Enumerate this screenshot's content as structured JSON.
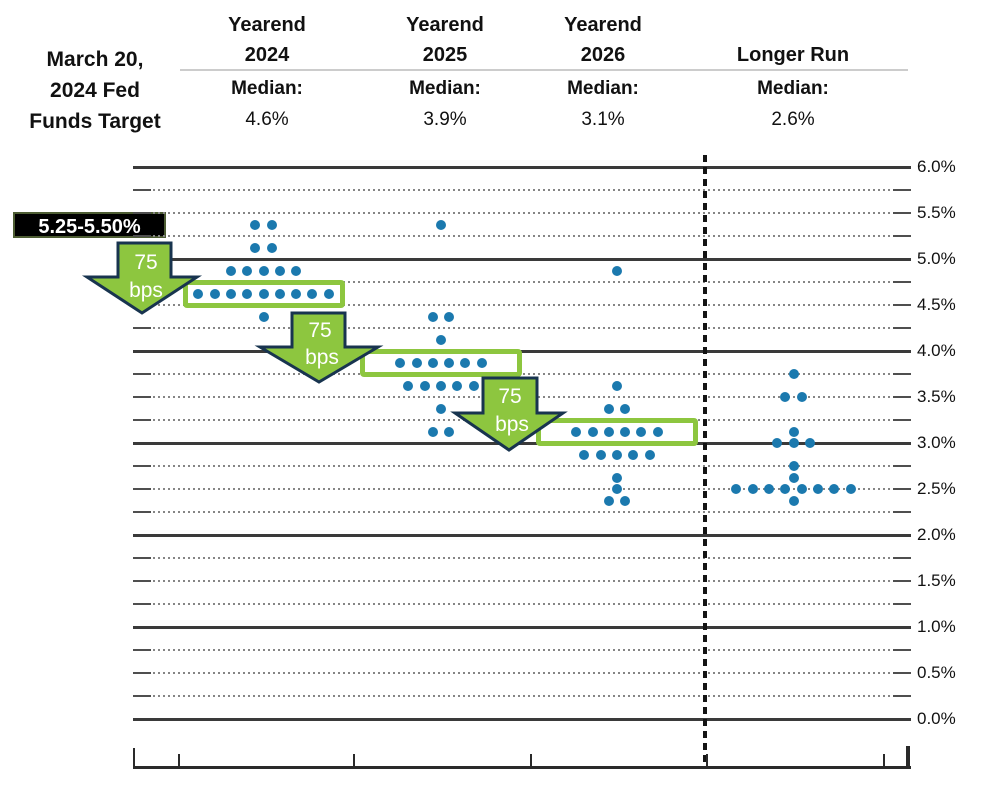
{
  "title": {
    "lines": [
      "March 20,",
      "2024 Fed",
      "Funds Target"
    ]
  },
  "target_label": "5.25-5.50%",
  "columns": [
    {
      "header": [
        "Yearend",
        "2024"
      ],
      "median_label": "Median:",
      "median_value": "4.6%"
    },
    {
      "header": [
        "Yearend",
        "2025"
      ],
      "median_label": "Median:",
      "median_value": "3.9%"
    },
    {
      "header": [
        "Yearend",
        "2026"
      ],
      "median_label": "Median:",
      "median_value": "3.1%"
    },
    {
      "header": [
        "Longer Run"
      ],
      "median_label": "Median:",
      "median_value": "2.6%"
    }
  ],
  "chart_data": {
    "type": "scatter",
    "title": "March 20, 2024 Fed Funds Target dot plot",
    "ylabel": "",
    "xlabel": "",
    "ylim": [
      0.0,
      6.0
    ],
    "gridline_step": 0.25,
    "solid_gridlines_at_integers": true,
    "grid": "on",
    "y_tick_labels": [
      "6.0%",
      "5.5%",
      "5.0%",
      "4.5%",
      "4.0%",
      "3.5%",
      "3.0%",
      "2.5%",
      "2.0%",
      "1.5%",
      "1.0%",
      "0.5%",
      "0.0%"
    ],
    "categories": [
      "Yearend 2024",
      "Yearend 2025",
      "Yearend 2026",
      "Longer Run"
    ],
    "series": [
      {
        "name": "Yearend 2024",
        "median_pct": 4.6,
        "dots": [
          [
            5.375,
            2
          ],
          [
            5.125,
            2
          ],
          [
            4.875,
            5
          ],
          [
            4.625,
            9
          ],
          [
            4.375,
            1
          ]
        ]
      },
      {
        "name": "Yearend 2025",
        "median_pct": 3.9,
        "dots": [
          [
            5.375,
            1
          ],
          [
            4.375,
            2
          ],
          [
            4.125,
            1
          ],
          [
            3.875,
            6
          ],
          [
            3.625,
            5
          ],
          [
            3.375,
            1
          ],
          [
            3.125,
            2
          ]
        ]
      },
      {
        "name": "Yearend 2026",
        "median_pct": 3.1,
        "dots": [
          [
            4.875,
            1
          ],
          [
            3.625,
            1
          ],
          [
            3.375,
            2
          ],
          [
            3.125,
            6
          ],
          [
            2.875,
            5
          ],
          [
            2.625,
            1
          ],
          [
            2.5,
            1
          ],
          [
            2.375,
            2
          ]
        ]
      },
      {
        "name": "Longer Run",
        "median_pct": 2.6,
        "dots": [
          [
            3.75,
            1
          ],
          [
            3.5,
            2
          ],
          [
            3.125,
            1
          ],
          [
            3.0,
            3
          ],
          [
            2.75,
            1
          ],
          [
            2.625,
            1
          ],
          [
            2.5,
            8
          ],
          [
            2.375,
            1
          ]
        ]
      }
    ],
    "annotations": {
      "current_target_label": "5.25-5.50%",
      "median_boxes_on_values": [
        4.625,
        3.875,
        3.125
      ],
      "arrows": [
        {
          "lines": [
            "75",
            "bps"
          ]
        },
        {
          "lines": [
            "75",
            "bps"
          ]
        },
        {
          "lines": [
            "75",
            "bps"
          ]
        }
      ]
    }
  },
  "colors": {
    "dot": "#1b79ae",
    "highlight_green": "#8dc63f",
    "arrow_outline": "#18344f",
    "target_label_bg": "#000000",
    "target_label_text": "#ffffff"
  }
}
